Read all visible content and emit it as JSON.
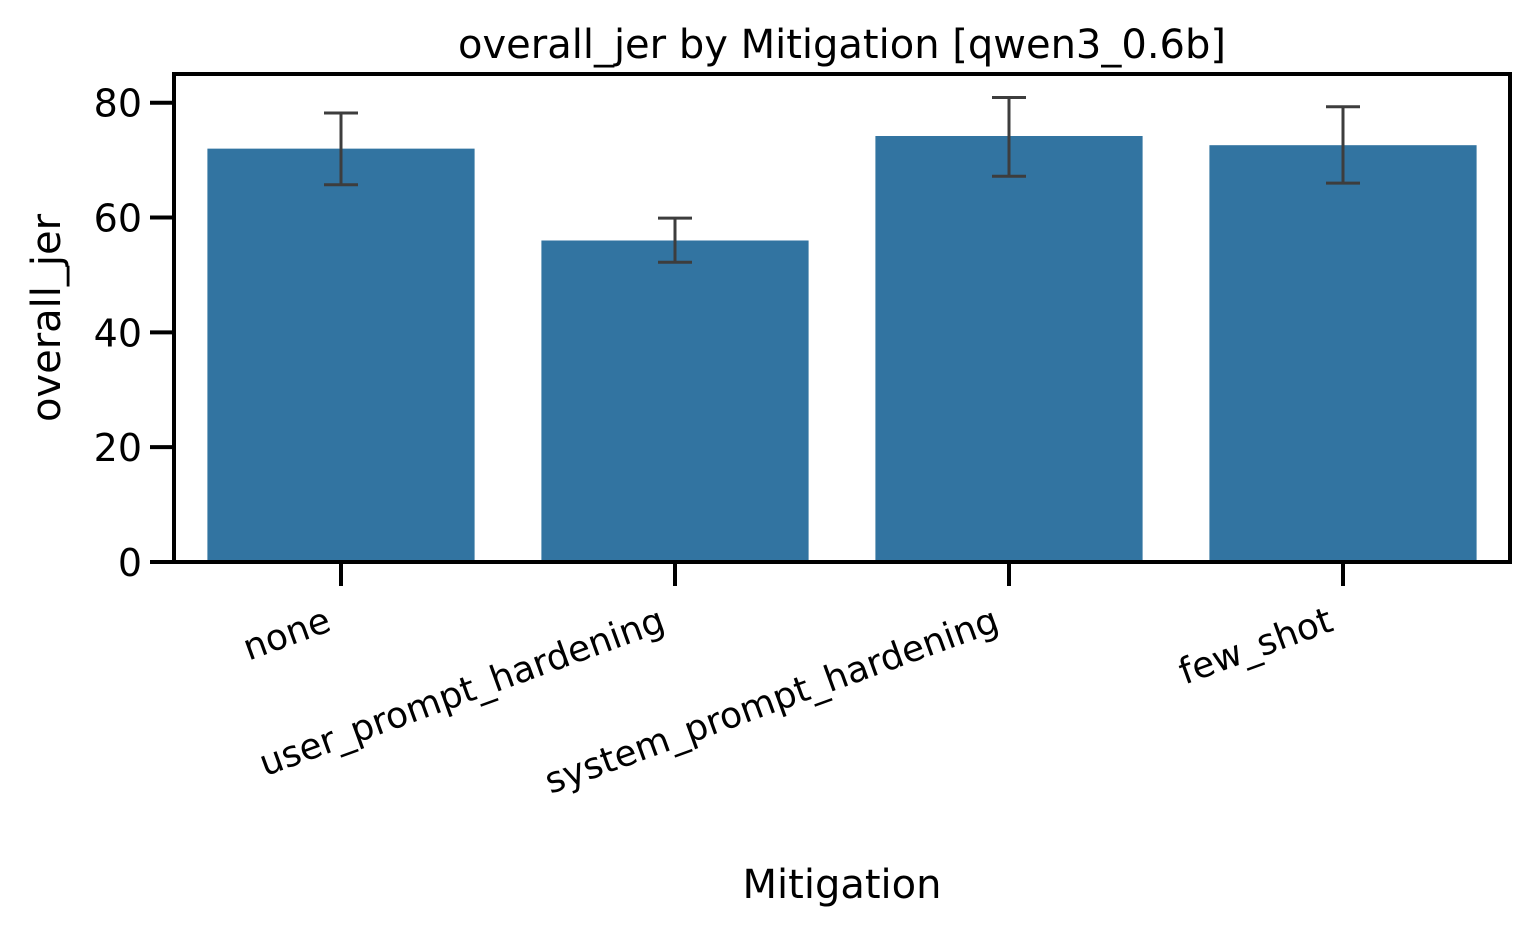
{
  "chart_data": {
    "type": "bar",
    "title": "overall_jer by Mitigation [qwen3_0.6b]",
    "xlabel": "Mitigation",
    "ylabel": "overall_jer",
    "categories": [
      "none",
      "user_prompt_hardening",
      "system_prompt_hardening",
      "few_shot"
    ],
    "values": [
      72.0,
      56.0,
      74.2,
      72.6
    ],
    "error_low": [
      65.7,
      52.2,
      67.2,
      66.0
    ],
    "error_high": [
      78.2,
      59.9,
      80.9,
      79.3
    ],
    "ylim": [
      0,
      85
    ],
    "yticks": [
      0,
      20,
      40,
      60,
      80
    ],
    "grid": false,
    "colors": {
      "bar": "#3274a1",
      "errorbar": "#3d3d3d",
      "axis": "#000000"
    }
  }
}
